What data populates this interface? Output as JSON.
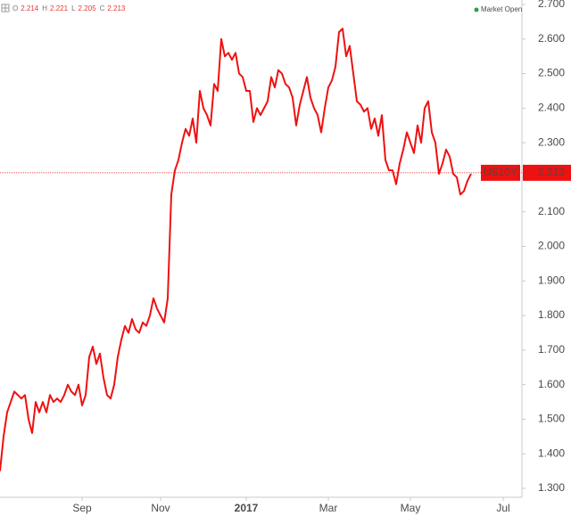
{
  "chart_data": {
    "type": "line",
    "header": {
      "labels": [
        "O",
        "H",
        "L",
        "C"
      ],
      "values": [
        2.214,
        2.221,
        2.205,
        2.213
      ],
      "status": "Market Open"
    },
    "series": [
      {
        "name": "US10Y",
        "color": "#ee1111",
        "values": [
          1.35,
          1.45,
          1.52,
          1.55,
          1.58,
          1.57,
          1.56,
          1.57,
          1.5,
          1.46,
          1.55,
          1.52,
          1.55,
          1.52,
          1.57,
          1.55,
          1.56,
          1.55,
          1.57,
          1.6,
          1.58,
          1.57,
          1.6,
          1.54,
          1.57,
          1.68,
          1.71,
          1.66,
          1.69,
          1.62,
          1.57,
          1.56,
          1.6,
          1.68,
          1.73,
          1.77,
          1.75,
          1.79,
          1.76,
          1.75,
          1.78,
          1.77,
          1.8,
          1.85,
          1.82,
          1.8,
          1.78,
          1.85,
          2.15,
          2.22,
          2.25,
          2.3,
          2.34,
          2.32,
          2.37,
          2.3,
          2.45,
          2.4,
          2.38,
          2.35,
          2.47,
          2.45,
          2.6,
          2.55,
          2.56,
          2.54,
          2.56,
          2.5,
          2.49,
          2.45,
          2.45,
          2.36,
          2.4,
          2.38,
          2.4,
          2.42,
          2.49,
          2.46,
          2.51,
          2.5,
          2.47,
          2.46,
          2.43,
          2.35,
          2.41,
          2.45,
          2.49,
          2.43,
          2.4,
          2.38,
          2.33,
          2.4,
          2.46,
          2.48,
          2.52,
          2.62,
          2.63,
          2.55,
          2.58,
          2.5,
          2.42,
          2.41,
          2.39,
          2.4,
          2.34,
          2.37,
          2.32,
          2.38,
          2.25,
          2.22,
          2.22,
          2.18,
          2.24,
          2.28,
          2.33,
          2.3,
          2.27,
          2.35,
          2.3,
          2.4,
          2.42,
          2.33,
          2.3,
          2.21,
          2.24,
          2.28,
          2.26,
          2.21,
          2.2,
          2.15,
          2.16,
          2.19,
          2.21
        ]
      }
    ],
    "last": 2.213,
    "xlim": [
      0,
      146
    ],
    "xticks": [
      {
        "value": 23,
        "label": "Sep"
      },
      {
        "value": 45,
        "label": "Nov"
      },
      {
        "value": 69,
        "label": "2017"
      },
      {
        "value": 92,
        "label": "Mar"
      },
      {
        "value": 115,
        "label": "May"
      },
      {
        "value": 141,
        "label": "Jul"
      }
    ],
    "ylim": [
      1.3,
      2.7
    ],
    "yticks": [
      {
        "value": 1.3,
        "label": "1.300"
      },
      {
        "value": 1.4,
        "label": "1.400"
      },
      {
        "value": 1.5,
        "label": "1.500"
      },
      {
        "value": 1.6,
        "label": "1.600"
      },
      {
        "value": 1.7,
        "label": "1.700"
      },
      {
        "value": 1.8,
        "label": "1.800"
      },
      {
        "value": 1.9,
        "label": "1.900"
      },
      {
        "value": 2.0,
        "label": "2.000"
      },
      {
        "value": 2.1,
        "label": "2.100"
      },
      {
        "value": 2.2,
        "label": "2.200"
      },
      {
        "value": 2.3,
        "label": "2.300"
      },
      {
        "value": 2.4,
        "label": "2.400"
      },
      {
        "value": 2.5,
        "label": "2.500"
      },
      {
        "value": 2.6,
        "label": "2.600"
      },
      {
        "value": 2.7,
        "label": "2.700"
      }
    ]
  }
}
